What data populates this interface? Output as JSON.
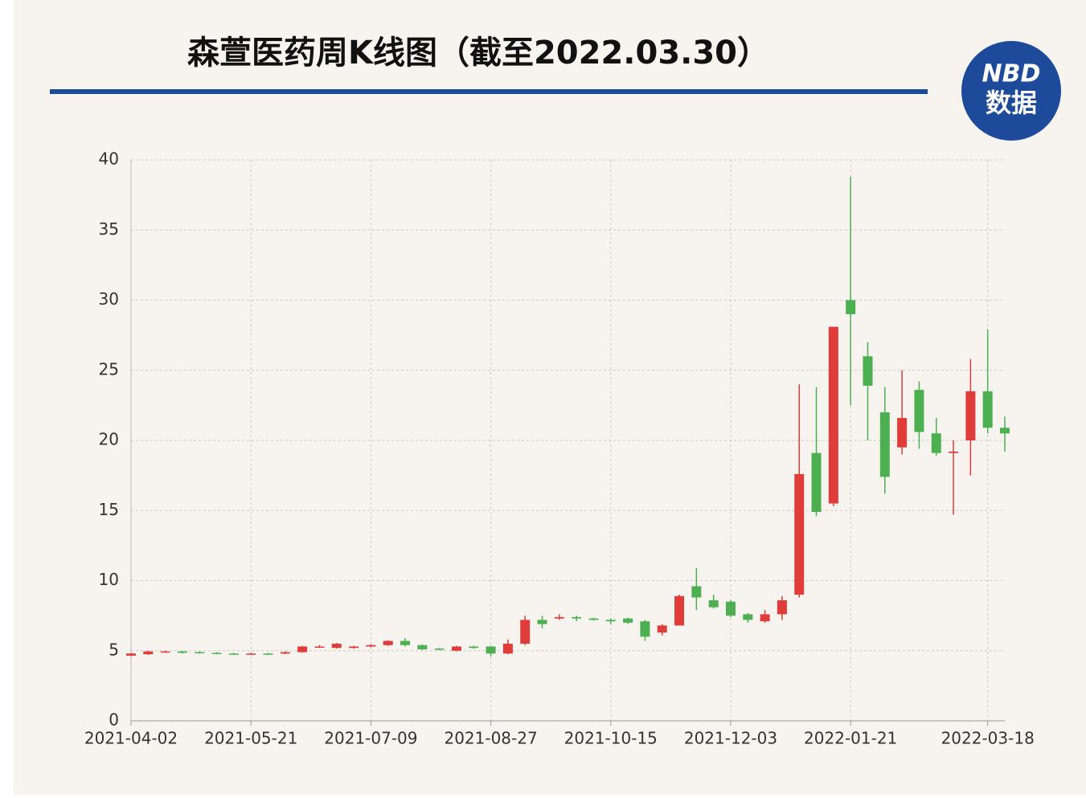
{
  "chart_data": {
    "type": "candlestick",
    "title": "森萱医药周K线图（截至2022.03.30）",
    "logo": {
      "text1": "NBD",
      "text2": "数据"
    },
    "x": [
      "2021-04-02",
      "2021-04-09",
      "2021-04-16",
      "2021-04-23",
      "2021-04-30",
      "2021-05-07",
      "2021-05-14",
      "2021-05-21",
      "2021-05-28",
      "2021-06-04",
      "2021-06-11",
      "2021-06-18",
      "2021-06-25",
      "2021-07-02",
      "2021-07-09",
      "2021-07-16",
      "2021-07-23",
      "2021-07-30",
      "2021-08-06",
      "2021-08-13",
      "2021-08-20",
      "2021-08-27",
      "2021-09-03",
      "2021-09-10",
      "2021-09-17",
      "2021-09-24",
      "2021-10-01",
      "2021-10-08",
      "2021-10-15",
      "2021-10-22",
      "2021-10-29",
      "2021-11-05",
      "2021-11-12",
      "2021-11-19",
      "2021-11-26",
      "2021-12-03",
      "2021-12-10",
      "2021-12-17",
      "2021-12-24",
      "2021-12-31",
      "2022-01-07",
      "2022-01-14",
      "2022-01-21",
      "2022-01-28",
      "2022-02-04",
      "2022-02-11",
      "2022-02-18",
      "2022-02-25",
      "2022-03-04",
      "2022-03-11",
      "2022-03-18",
      "2022-03-25"
    ],
    "open": [
      4.65,
      4.75,
      4.9,
      4.95,
      4.9,
      4.85,
      4.8,
      4.75,
      4.8,
      4.8,
      4.9,
      5.25,
      5.2,
      5.2,
      5.3,
      5.4,
      5.7,
      5.4,
      5.15,
      5.0,
      5.3,
      5.3,
      4.8,
      5.5,
      7.2,
      7.3,
      7.4,
      7.3,
      7.2,
      7.3,
      7.1,
      6.3,
      6.8,
      9.6,
      8.6,
      8.5,
      7.6,
      7.1,
      7.6,
      9.0,
      19.1,
      15.5,
      30.0,
      26.0,
      22.0,
      19.5,
      23.6,
      20.5,
      19.1,
      20.0,
      23.5,
      20.9
    ],
    "high": [
      4.85,
      5.0,
      5.0,
      5.0,
      4.95,
      4.9,
      4.85,
      4.85,
      4.85,
      4.95,
      5.35,
      5.4,
      5.55,
      5.35,
      5.45,
      5.75,
      5.9,
      5.45,
      5.2,
      5.35,
      5.35,
      5.35,
      5.8,
      7.5,
      7.5,
      7.6,
      7.5,
      7.35,
      7.3,
      7.35,
      7.2,
      6.9,
      9.0,
      10.9,
      9.0,
      8.6,
      7.7,
      7.9,
      8.9,
      24.0,
      23.8,
      28.1,
      38.8,
      27.0,
      23.8,
      25.0,
      24.2,
      21.6,
      20.0,
      25.8,
      27.9,
      21.7
    ],
    "low": [
      4.6,
      4.7,
      4.85,
      4.8,
      4.8,
      4.75,
      4.7,
      4.7,
      4.7,
      4.75,
      4.85,
      5.2,
      5.15,
      5.15,
      5.25,
      5.35,
      5.3,
      5.05,
      5.05,
      4.95,
      5.15,
      4.6,
      4.75,
      5.4,
      6.6,
      7.2,
      7.1,
      7.15,
      6.9,
      6.9,
      5.7,
      6.1,
      6.8,
      7.9,
      8.0,
      7.4,
      7.0,
      7.0,
      7.2,
      8.8,
      14.6,
      15.3,
      22.5,
      20.0,
      16.2,
      19.0,
      19.4,
      18.9,
      14.7,
      17.5,
      20.5,
      19.2
    ],
    "close": [
      4.8,
      4.95,
      4.95,
      4.85,
      4.85,
      4.8,
      4.75,
      4.8,
      4.75,
      4.9,
      5.3,
      5.3,
      5.5,
      5.3,
      5.4,
      5.7,
      5.4,
      5.1,
      5.1,
      5.3,
      5.2,
      4.8,
      5.5,
      7.2,
      6.9,
      7.4,
      7.3,
      7.2,
      7.1,
      7.0,
      6.0,
      6.8,
      8.9,
      8.8,
      8.1,
      7.5,
      7.2,
      7.6,
      8.6,
      17.6,
      14.9,
      28.1,
      29.0,
      23.9,
      17.4,
      21.6,
      20.6,
      19.1,
      19.2,
      23.5,
      20.9,
      20.5
    ],
    "up_color": "#e03c3a",
    "down_color": "#4caf50",
    "xlim": [
      "2021-04-02",
      "2022-03-25"
    ],
    "xticks": [
      "2021-04-02",
      "2021-05-21",
      "2021-07-09",
      "2021-08-27",
      "2021-10-15",
      "2021-12-03",
      "2022-01-21",
      "2022-03-18"
    ],
    "ylim": [
      0,
      40
    ],
    "yticks": [
      0,
      5,
      10,
      15,
      20,
      25,
      30,
      35,
      40
    ],
    "grid": true
  }
}
